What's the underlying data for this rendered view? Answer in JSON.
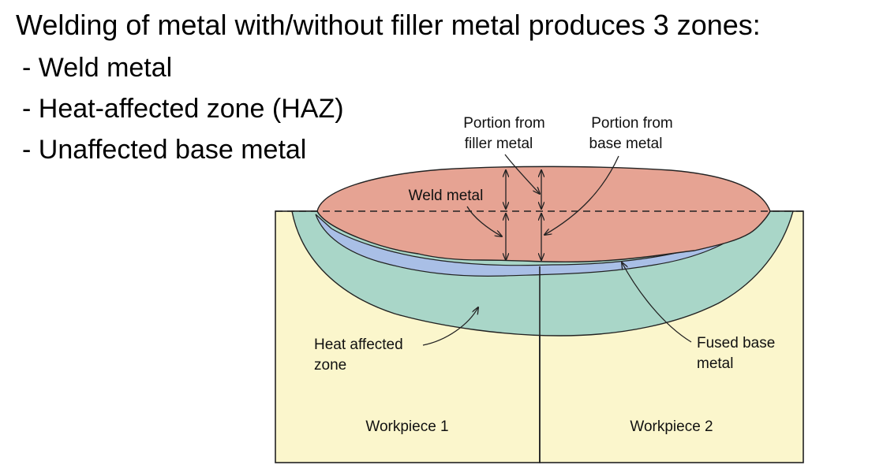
{
  "heading": "Welding of metal with/without filler metal produces 3 zones:",
  "bullets": [
    "- Weld metal",
    "- Heat-affected zone (HAZ)",
    "- Unaffected base metal"
  ],
  "diagram": {
    "labels": {
      "filler_line1": "Portion from",
      "filler_line2": "filler metal",
      "base_line1": "Portion from",
      "base_line2": "base metal",
      "weld_metal": "Weld metal",
      "haz_line1": "Heat affected",
      "haz_line2": "zone",
      "fused_line1": "Fused base",
      "fused_line2": "metal",
      "workpiece1": "Workpiece 1",
      "workpiece2": "Workpiece 2"
    },
    "colors": {
      "workpiece": "#fbf6cc",
      "weld_metal": "#e6a393",
      "haz": "#a9d6c8",
      "fused": "#a9bfe6",
      "outline": "#222222"
    }
  }
}
